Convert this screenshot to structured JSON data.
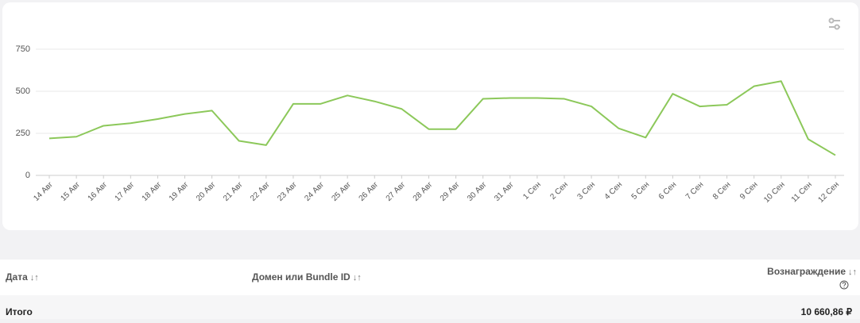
{
  "chart_data": {
    "type": "line",
    "categories": [
      "14 Авг",
      "15 Авг",
      "16 Авг",
      "17 Авг",
      "18 Авг",
      "19 Авг",
      "20 Авг",
      "21 Авг",
      "22 Авг",
      "23 Авг",
      "24 Авг",
      "25 Авг",
      "26 Авг",
      "27 Авг",
      "28 Авг",
      "29 Авг",
      "30 Авг",
      "31 Авг",
      "1 Сен",
      "2 Сен",
      "3 Сен",
      "4 Сен",
      "5 Сен",
      "6 Сен",
      "7 Сен",
      "8 Сен",
      "9 Сен",
      "10 Сен",
      "11 Сен",
      "12 Сен"
    ],
    "values": [
      220,
      230,
      295,
      310,
      335,
      365,
      385,
      205,
      180,
      425,
      425,
      475,
      440,
      395,
      275,
      275,
      455,
      460,
      460,
      455,
      410,
      280,
      225,
      485,
      410,
      420,
      530,
      560,
      215,
      120
    ],
    "color": "#8cc85a",
    "ylim": [
      0,
      750
    ],
    "yticks": [
      0,
      250,
      500,
      750
    ],
    "grid": true
  },
  "table": {
    "headers": [
      "Дата",
      "Домен или Bundle ID",
      "Вознаграждение"
    ],
    "total": {
      "label": "Итого",
      "value": "10 660,86 ₽"
    }
  }
}
